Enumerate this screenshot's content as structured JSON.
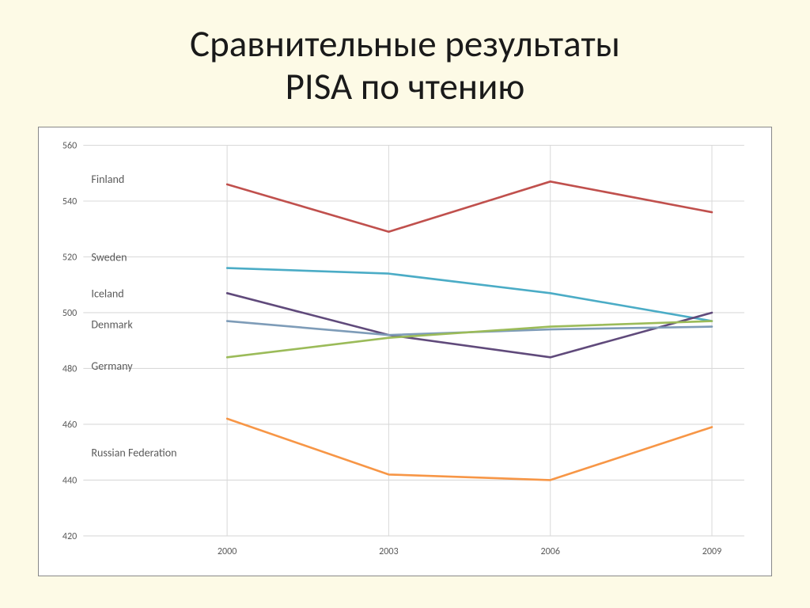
{
  "title_line1": "Сравнительные результаты",
  "title_line2": "PISA по чтению",
  "chart": {
    "type": "line",
    "background_color": "#ffffff",
    "grid_color": "#d9d9d9",
    "axis_label_color": "#595959",
    "axis_label_fontsize": 12,
    "series_label_fontsize": 14,
    "line_width": 2.5,
    "ylim": [
      420,
      560
    ],
    "ytick_step": 20,
    "yticks": [
      420,
      440,
      460,
      480,
      500,
      520,
      540,
      560
    ],
    "x_categories": [
      "2000",
      "2003",
      "2006",
      "2009"
    ],
    "series": [
      {
        "name": "Finland",
        "label_y": 548,
        "color": "#c0504d",
        "values": [
          546,
          529,
          547,
          536
        ]
      },
      {
        "name": "Sweden",
        "label_y": 520,
        "color": "#4bacc6",
        "values": [
          516,
          514,
          507,
          497
        ]
      },
      {
        "name": "Iceland",
        "label_y": 507,
        "color": "#604a7b",
        "values": [
          507,
          492,
          484,
          500
        ]
      },
      {
        "name": "Denmark",
        "label_y": 496,
        "color": "#7e9cb8",
        "values": [
          497,
          492,
          494,
          495
        ]
      },
      {
        "name": "Germany",
        "label_y": 481,
        "color": "#9bbb59",
        "values": [
          484,
          491,
          495,
          497
        ]
      },
      {
        "name": "Russian Federation",
        "label_y": 450,
        "color": "#f79646",
        "values": [
          462,
          442,
          440,
          459
        ]
      }
    ]
  }
}
